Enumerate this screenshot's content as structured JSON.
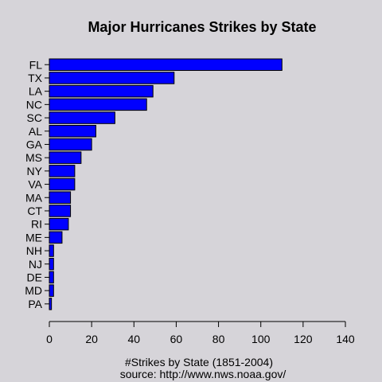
{
  "chart_data": {
    "type": "bar",
    "orientation": "horizontal",
    "title": "Major Hurricanes Strikes by State",
    "xlabel": "#Strikes by State (1851-2004)",
    "source": "source: http://www.nws.noaa.gov/",
    "categories": [
      "FL",
      "TX",
      "LA",
      "NC",
      "SC",
      "AL",
      "GA",
      "MS",
      "NY",
      "VA",
      "MA",
      "CT",
      "RI",
      "ME",
      "NH",
      "NJ",
      "DE",
      "MD",
      "PA"
    ],
    "values": [
      110,
      59,
      49,
      46,
      31,
      22,
      20,
      15,
      12,
      12,
      10,
      10,
      9,
      6,
      2,
      2,
      2,
      2,
      1
    ],
    "xlim": [
      0,
      140
    ],
    "xticks": [
      0,
      20,
      40,
      60,
      80,
      100,
      120,
      140
    ],
    "grid": false,
    "colors": {
      "bar_fill": "#0000FF",
      "bar_stroke": "#000000",
      "background": "#D6D4D9"
    }
  }
}
